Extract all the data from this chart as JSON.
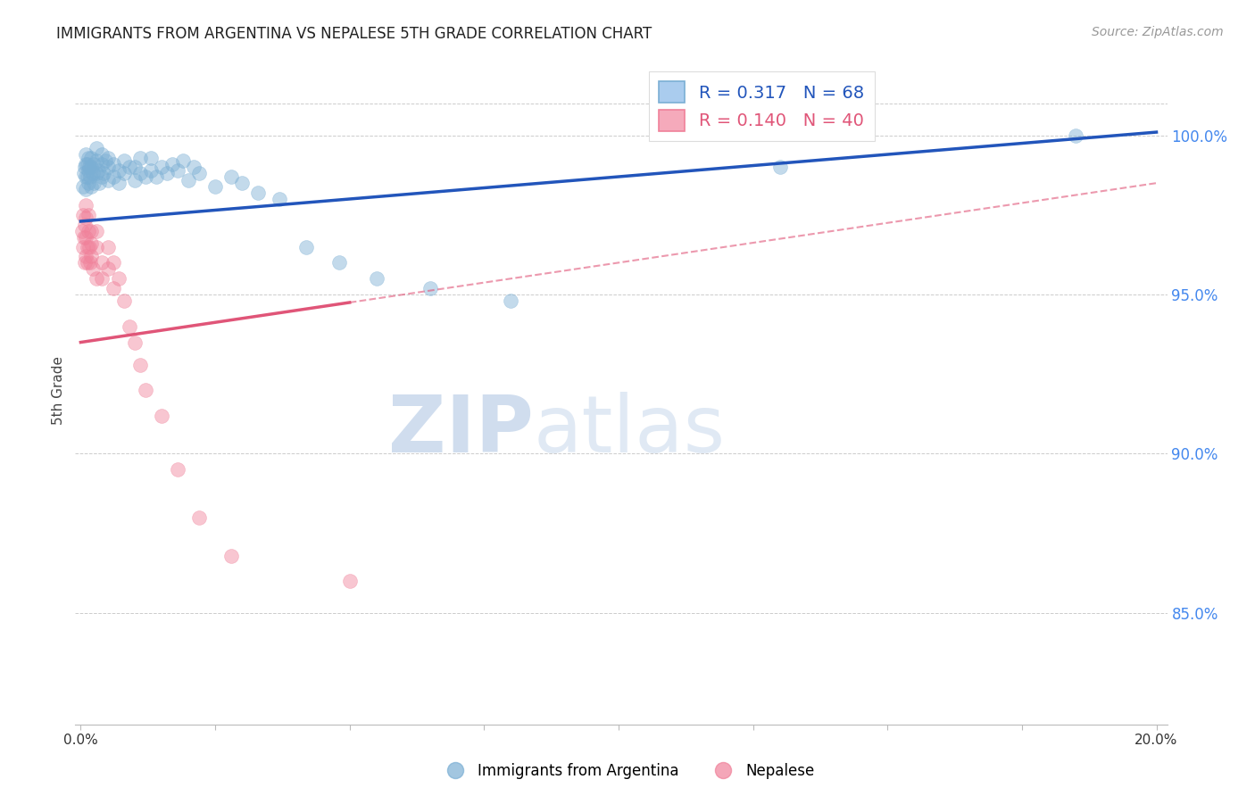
{
  "title": "IMMIGRANTS FROM ARGENTINA VS NEPALESE 5TH GRADE CORRELATION CHART",
  "source": "Source: ZipAtlas.com",
  "ylabel": "5th Grade",
  "legend_label1": "Immigrants from Argentina",
  "legend_label2": "Nepalese",
  "R1": 0.317,
  "N1": 68,
  "R2": 0.14,
  "N2": 40,
  "blue_scatter_color": "#7BAFD4",
  "blue_line_color": "#2255BB",
  "pink_scatter_color": "#F0819A",
  "pink_line_color": "#E05578",
  "watermark_zip": "ZIP",
  "watermark_atlas": "atlas",
  "xlim": [
    0.0,
    0.2
  ],
  "ylim": [
    0.815,
    1.025
  ],
  "yticks": [
    0.85,
    0.9,
    0.95,
    1.0
  ],
  "ytick_labels": [
    "85.0%",
    "90.0%",
    "95.0%",
    "100.0%"
  ],
  "arg_x": [
    0.0005,
    0.0006,
    0.0008,
    0.001,
    0.001,
    0.001,
    0.001,
    0.0012,
    0.0013,
    0.0014,
    0.0015,
    0.0015,
    0.0016,
    0.0018,
    0.002,
    0.002,
    0.002,
    0.0022,
    0.0025,
    0.0025,
    0.003,
    0.003,
    0.003,
    0.0032,
    0.0035,
    0.004,
    0.004,
    0.004,
    0.0042,
    0.0045,
    0.005,
    0.005,
    0.005,
    0.006,
    0.006,
    0.007,
    0.007,
    0.008,
    0.008,
    0.009,
    0.01,
    0.01,
    0.011,
    0.011,
    0.012,
    0.013,
    0.013,
    0.014,
    0.015,
    0.016,
    0.017,
    0.018,
    0.019,
    0.02,
    0.021,
    0.022,
    0.025,
    0.028,
    0.03,
    0.033,
    0.037,
    0.042,
    0.048,
    0.055,
    0.065,
    0.08,
    0.13,
    0.185
  ],
  "arg_y": [
    0.984,
    0.988,
    0.99,
    0.983,
    0.987,
    0.991,
    0.994,
    0.987,
    0.991,
    0.989,
    0.985,
    0.993,
    0.99,
    0.987,
    0.984,
    0.99,
    0.993,
    0.988,
    0.991,
    0.985,
    0.988,
    0.992,
    0.996,
    0.989,
    0.985,
    0.987,
    0.991,
    0.994,
    0.988,
    0.992,
    0.986,
    0.99,
    0.993,
    0.987,
    0.991,
    0.985,
    0.989,
    0.988,
    0.992,
    0.99,
    0.986,
    0.99,
    0.988,
    0.993,
    0.987,
    0.989,
    0.993,
    0.987,
    0.99,
    0.988,
    0.991,
    0.989,
    0.992,
    0.986,
    0.99,
    0.988,
    0.984,
    0.987,
    0.985,
    0.982,
    0.98,
    0.965,
    0.96,
    0.955,
    0.952,
    0.948,
    0.99,
    1.0
  ],
  "nep_x": [
    0.0003,
    0.0004,
    0.0005,
    0.0006,
    0.0007,
    0.0008,
    0.001,
    0.001,
    0.001,
    0.001,
    0.0012,
    0.0013,
    0.0015,
    0.0015,
    0.0016,
    0.0018,
    0.002,
    0.002,
    0.002,
    0.0022,
    0.003,
    0.003,
    0.003,
    0.004,
    0.004,
    0.005,
    0.005,
    0.006,
    0.006,
    0.007,
    0.008,
    0.009,
    0.01,
    0.011,
    0.012,
    0.015,
    0.018,
    0.022,
    0.028,
    0.05
  ],
  "nep_y": [
    0.97,
    0.975,
    0.965,
    0.968,
    0.972,
    0.96,
    0.962,
    0.968,
    0.974,
    0.978,
    0.965,
    0.96,
    0.97,
    0.975,
    0.965,
    0.96,
    0.966,
    0.97,
    0.962,
    0.958,
    0.955,
    0.965,
    0.97,
    0.96,
    0.955,
    0.965,
    0.958,
    0.952,
    0.96,
    0.955,
    0.948,
    0.94,
    0.935,
    0.928,
    0.92,
    0.912,
    0.895,
    0.88,
    0.868,
    0.86
  ]
}
